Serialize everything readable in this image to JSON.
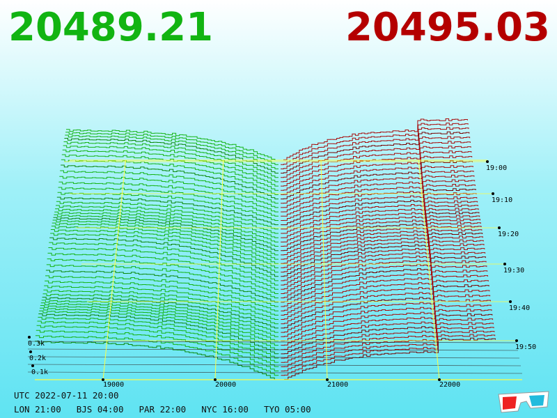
{
  "header": {
    "bid": "20489.21",
    "ask": "20495.03"
  },
  "axes": {
    "price_ticks": [
      "19000",
      "20000",
      "21000",
      "22000"
    ],
    "time_ticks": [
      "19:00",
      "19:10",
      "19:20",
      "19:30",
      "19:40",
      "19:50"
    ],
    "depth_ticks": [
      "0.3k",
      "0.2k",
      "0.1k"
    ]
  },
  "footer": {
    "utc": "UTC 2022-07-11 20:00",
    "cities": [
      "LON 21:00",
      "BJS 04:00",
      "PAR 22:00",
      "NYC 16:00",
      "TYO 05:00"
    ]
  }
}
